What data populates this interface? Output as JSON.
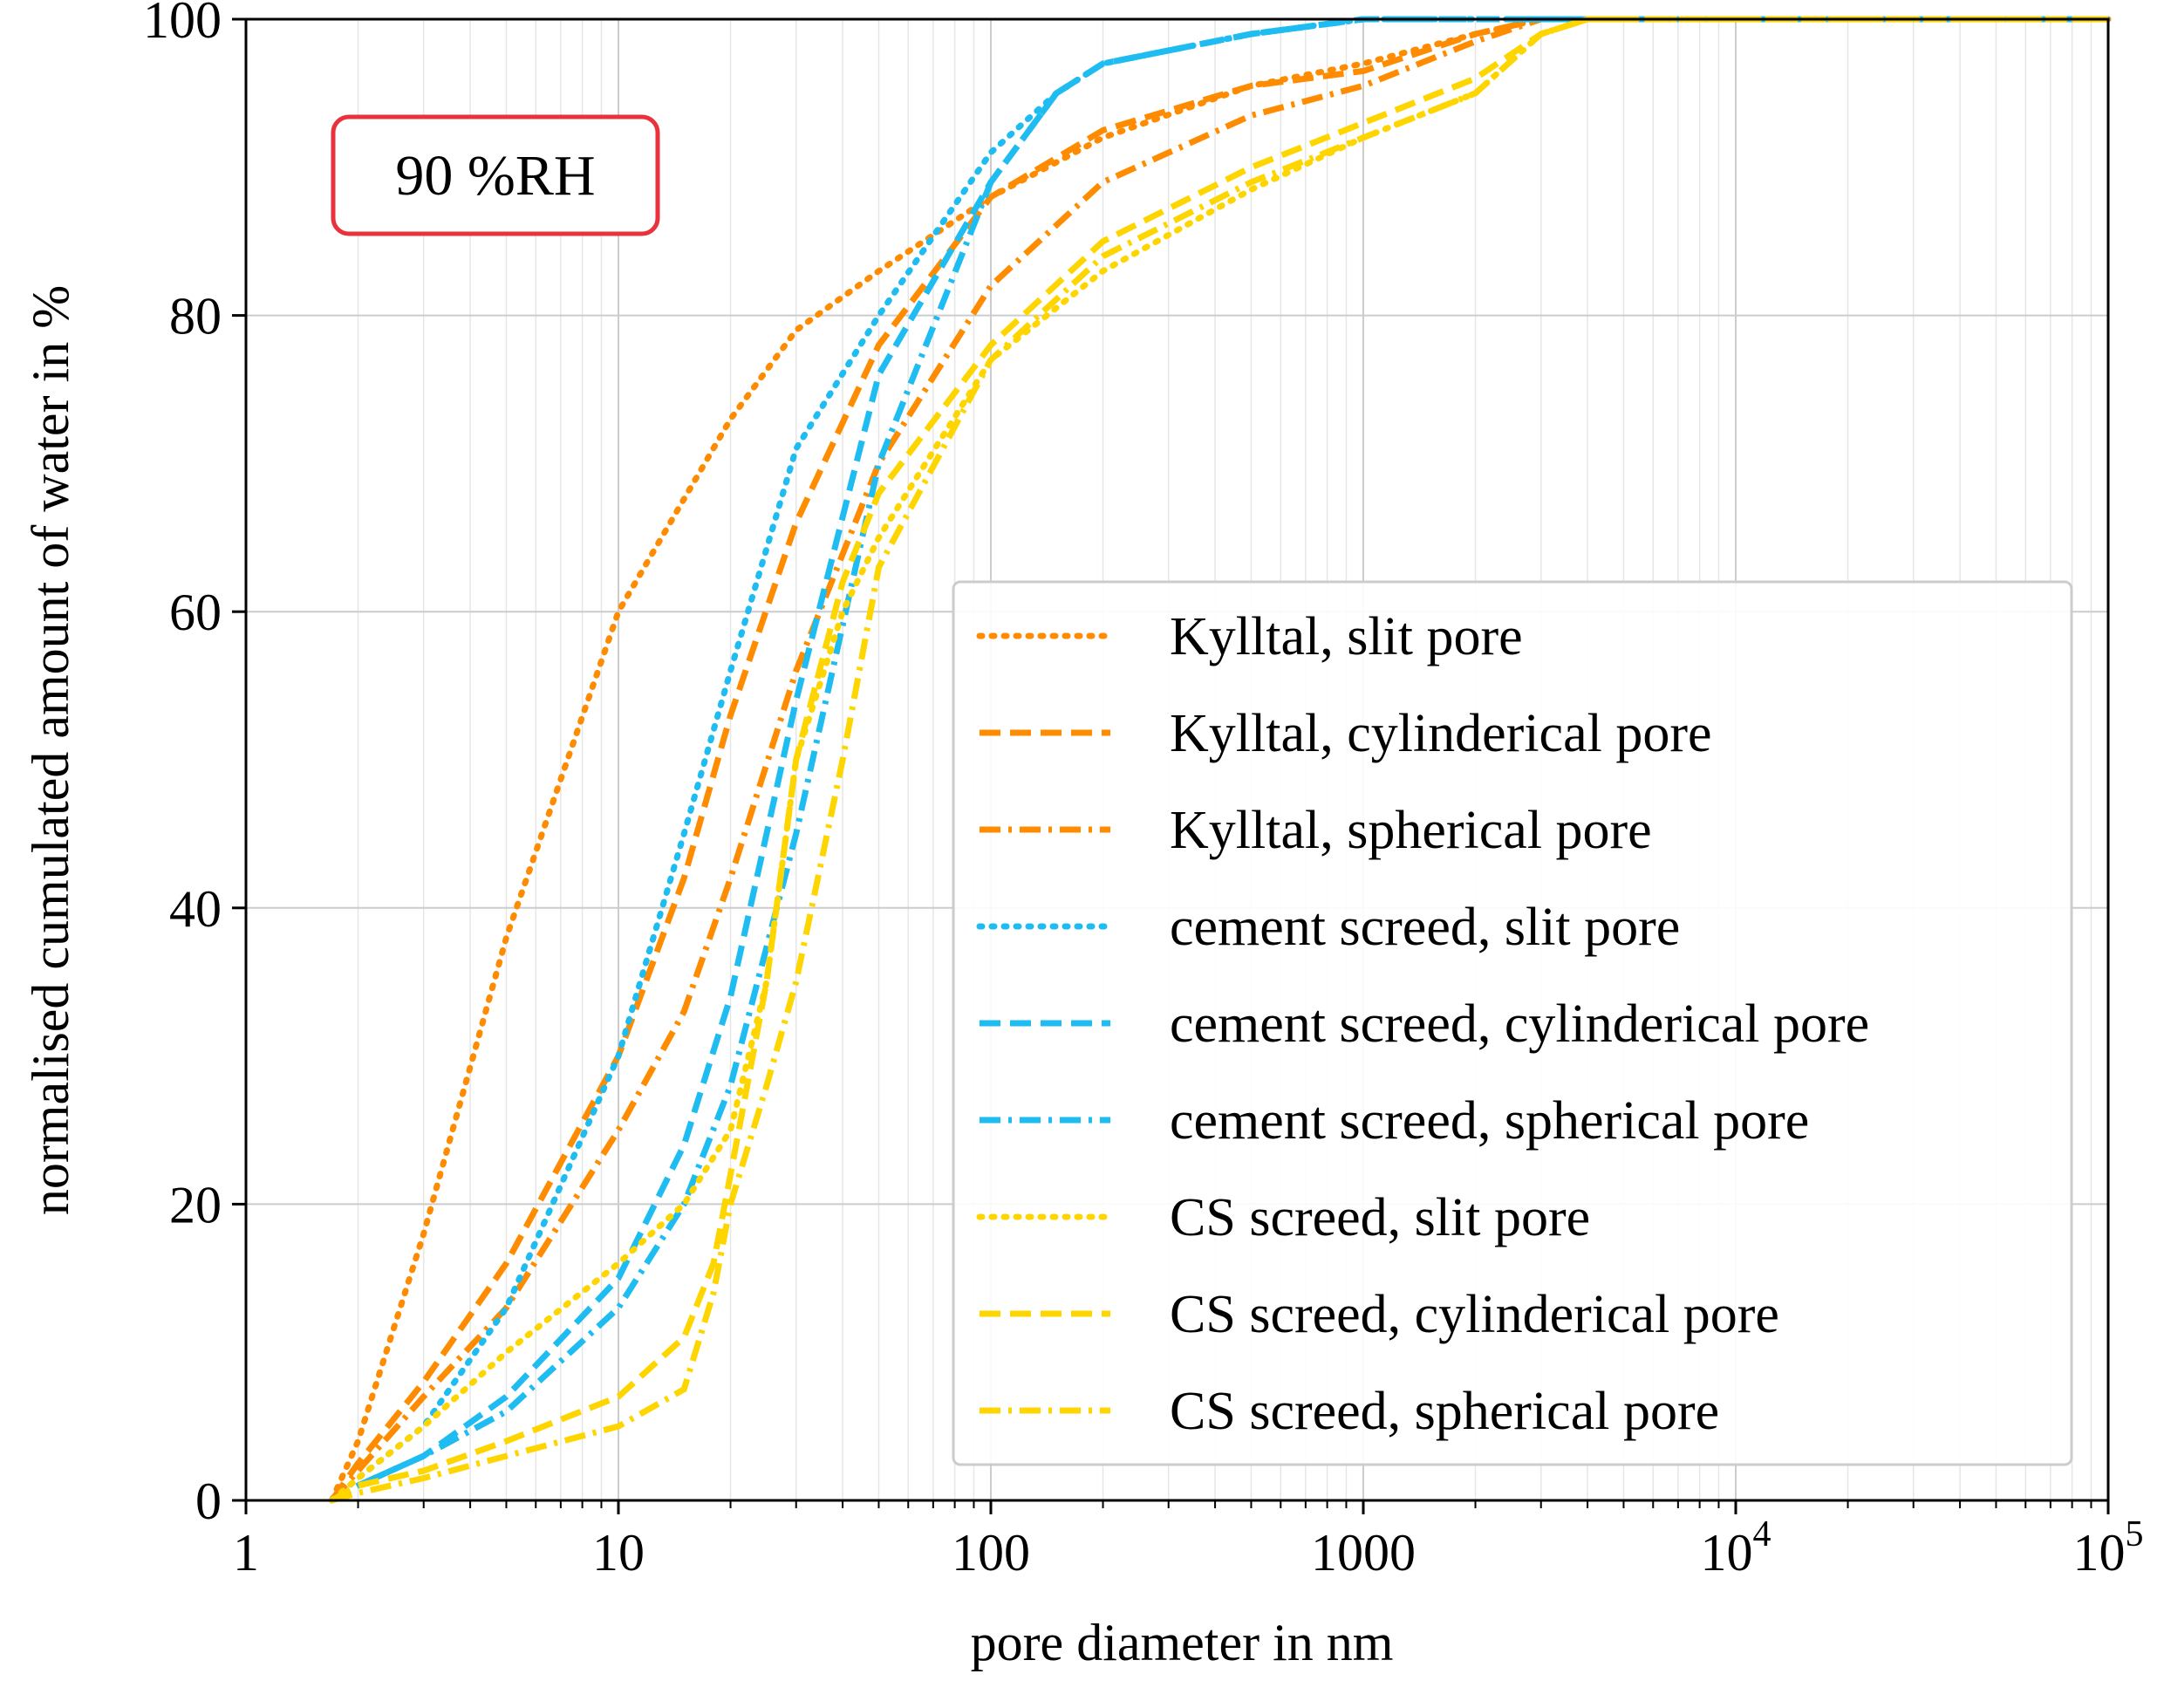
{
  "chart_data": {
    "type": "line",
    "xscale": "log",
    "xlabel": "pore diameter in nm",
    "ylabel": "normalised cumulated amount of water in %",
    "xlim": [
      1,
      100000
    ],
    "ylim": [
      0,
      100
    ],
    "grid": true,
    "legend_position": "lower-right",
    "x_ticks": [
      {
        "value": 1,
        "label": "1"
      },
      {
        "value": 10,
        "label": "10"
      },
      {
        "value": 100,
        "label": "100"
      },
      {
        "value": 1000,
        "label": "1000"
      },
      {
        "value": 10000,
        "label": "10",
        "exponent": "4"
      },
      {
        "value": 100000,
        "label": "10",
        "exponent": "5"
      }
    ],
    "y_ticks": [
      {
        "value": 0,
        "label": "0"
      },
      {
        "value": 20,
        "label": "20"
      },
      {
        "value": 40,
        "label": "40"
      },
      {
        "value": 60,
        "label": "60"
      },
      {
        "value": 80,
        "label": "80"
      },
      {
        "value": 100,
        "label": "100"
      }
    ],
    "annotation": {
      "text": "90 %RH",
      "border_color": "#e8323c"
    },
    "series": [
      {
        "name": "Kylltal, slit pore",
        "color": "#ff8c00",
        "style": "dotted",
        "points": [
          [
            1.7,
            0
          ],
          [
            2,
            4
          ],
          [
            3,
            18
          ],
          [
            5,
            38
          ],
          [
            10,
            60
          ],
          [
            20,
            73
          ],
          [
            30,
            79
          ],
          [
            50,
            83
          ],
          [
            100,
            88
          ],
          [
            200,
            92
          ],
          [
            500,
            95.5
          ],
          [
            1000,
            97
          ],
          [
            2000,
            99
          ],
          [
            3000,
            100
          ],
          [
            100000,
            100
          ]
        ]
      },
      {
        "name": "Kylltal, cylinderical pore",
        "color": "#ff8c00",
        "style": "dashed",
        "points": [
          [
            1.7,
            0
          ],
          [
            2,
            2.5
          ],
          [
            3,
            8
          ],
          [
            5,
            16
          ],
          [
            10,
            30
          ],
          [
            15,
            42
          ],
          [
            20,
            53
          ],
          [
            30,
            66
          ],
          [
            50,
            78
          ],
          [
            100,
            88
          ],
          [
            200,
            92.5
          ],
          [
            500,
            95.5
          ],
          [
            1000,
            96.5
          ],
          [
            2000,
            99
          ],
          [
            3000,
            100
          ],
          [
            100000,
            100
          ]
        ]
      },
      {
        "name": "Kylltal, spherical pore",
        "color": "#ff8c00",
        "style": "dashdot",
        "points": [
          [
            1.7,
            0
          ],
          [
            2,
            2
          ],
          [
            3,
            7
          ],
          [
            5,
            13
          ],
          [
            10,
            25
          ],
          [
            15,
            33
          ],
          [
            20,
            42
          ],
          [
            30,
            56
          ],
          [
            50,
            70
          ],
          [
            100,
            82
          ],
          [
            200,
            89
          ],
          [
            500,
            93.5
          ],
          [
            1000,
            95.5
          ],
          [
            2000,
            98.5
          ],
          [
            3000,
            100
          ],
          [
            100000,
            100
          ]
        ]
      },
      {
        "name": "cement screed, slit pore",
        "color": "#1fbcf2",
        "style": "dotted",
        "points": [
          [
            1.7,
            0
          ],
          [
            2,
            1.5
          ],
          [
            3,
            5
          ],
          [
            5,
            13
          ],
          [
            10,
            30
          ],
          [
            15,
            45
          ],
          [
            20,
            56
          ],
          [
            30,
            71
          ],
          [
            50,
            80
          ],
          [
            100,
            91
          ],
          [
            150,
            95
          ],
          [
            200,
            97
          ],
          [
            500,
            99
          ],
          [
            1000,
            100
          ],
          [
            100000,
            100
          ]
        ]
      },
      {
        "name": "cement screed, cylinderical pore",
        "color": "#1fbcf2",
        "style": "dashed",
        "points": [
          [
            1.7,
            0
          ],
          [
            2,
            1
          ],
          [
            3,
            3
          ],
          [
            5,
            7
          ],
          [
            10,
            15
          ],
          [
            15,
            24
          ],
          [
            20,
            34
          ],
          [
            30,
            54
          ],
          [
            50,
            76
          ],
          [
            100,
            89
          ],
          [
            150,
            95
          ],
          [
            200,
            97
          ],
          [
            500,
            99
          ],
          [
            1000,
            100
          ],
          [
            100000,
            100
          ]
        ]
      },
      {
        "name": "cement screed, spherical pore",
        "color": "#1fbcf2",
        "style": "dashdot",
        "points": [
          [
            1.7,
            0
          ],
          [
            2,
            1
          ],
          [
            3,
            3
          ],
          [
            5,
            6
          ],
          [
            10,
            13
          ],
          [
            15,
            20
          ],
          [
            20,
            28
          ],
          [
            30,
            45
          ],
          [
            50,
            70
          ],
          [
            100,
            89
          ],
          [
            150,
            95
          ],
          [
            200,
            97
          ],
          [
            500,
            99
          ],
          [
            1000,
            100
          ],
          [
            100000,
            100
          ]
        ]
      },
      {
        "name": "CS screed, slit pore",
        "color": "#ffd500",
        "style": "dotted",
        "points": [
          [
            1.7,
            0
          ],
          [
            2,
            1.5
          ],
          [
            3,
            5
          ],
          [
            5,
            10
          ],
          [
            10,
            16
          ],
          [
            15,
            20
          ],
          [
            20,
            25
          ],
          [
            25,
            35
          ],
          [
            30,
            50
          ],
          [
            40,
            60
          ],
          [
            50,
            65
          ],
          [
            100,
            77
          ],
          [
            200,
            83
          ],
          [
            500,
            88.5
          ],
          [
            1000,
            92
          ],
          [
            2000,
            95
          ],
          [
            3000,
            99
          ],
          [
            4000,
            100
          ],
          [
            100000,
            100
          ]
        ]
      },
      {
        "name": "CS screed, cylinderical pore",
        "color": "#ffd500",
        "style": "dashed",
        "points": [
          [
            1.7,
            0
          ],
          [
            2,
            1
          ],
          [
            3,
            2
          ],
          [
            5,
            4
          ],
          [
            10,
            7
          ],
          [
            15,
            11
          ],
          [
            18,
            16
          ],
          [
            20,
            22
          ],
          [
            25,
            35
          ],
          [
            30,
            50
          ],
          [
            40,
            62
          ],
          [
            50,
            68
          ],
          [
            100,
            78
          ],
          [
            200,
            85
          ],
          [
            500,
            90
          ],
          [
            1000,
            93
          ],
          [
            2000,
            96
          ],
          [
            3000,
            99
          ],
          [
            4000,
            100
          ],
          [
            100000,
            100
          ]
        ]
      },
      {
        "name": "CS screed, spherical pore",
        "color": "#ffd500",
        "style": "dashdot",
        "points": [
          [
            1.7,
            0
          ],
          [
            2,
            0.5
          ],
          [
            3,
            1.5
          ],
          [
            5,
            3
          ],
          [
            10,
            5
          ],
          [
            15,
            7.5
          ],
          [
            18,
            14
          ],
          [
            20,
            20
          ],
          [
            25,
            28
          ],
          [
            30,
            35
          ],
          [
            40,
            50
          ],
          [
            50,
            63
          ],
          [
            100,
            77
          ],
          [
            200,
            84
          ],
          [
            500,
            89
          ],
          [
            1000,
            92
          ],
          [
            2000,
            95
          ],
          [
            3000,
            99
          ],
          [
            4000,
            100
          ],
          [
            100000,
            100
          ]
        ]
      }
    ]
  }
}
